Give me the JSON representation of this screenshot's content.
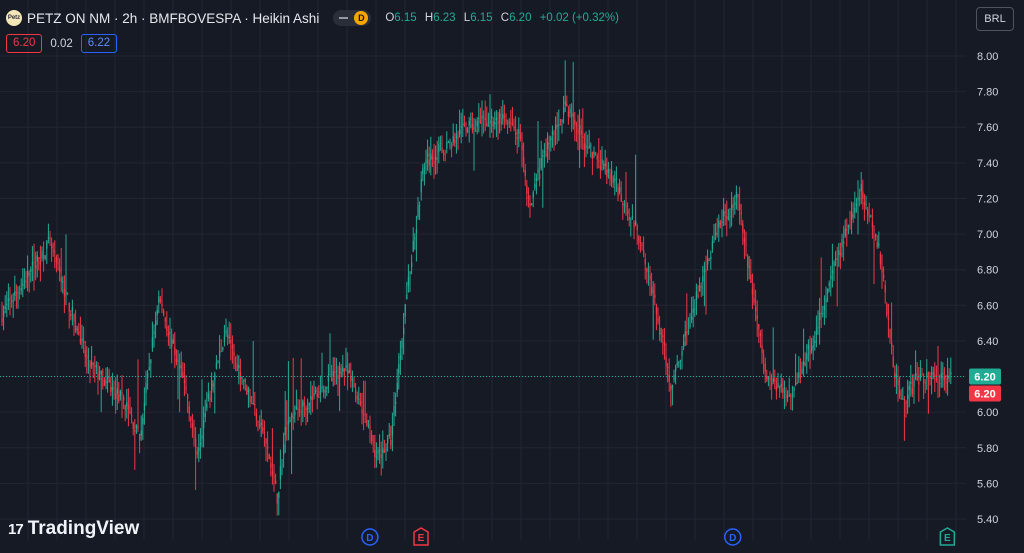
{
  "header": {
    "logo_text": "Petz",
    "title": "PETZ ON NM · 2h · BMFBOVESPA · Heikin Ashi",
    "badge": "D",
    "ohlc": [
      {
        "k": "O",
        "v": "6.15"
      },
      {
        "k": "H",
        "v": "6.23"
      },
      {
        "k": "L",
        "v": "6.15"
      },
      {
        "k": "C",
        "v": "6.20"
      }
    ],
    "change": "+0.02 (+0.32%)",
    "bid": "6.20",
    "spread": "0.02",
    "ask": "6.22",
    "currency": "BRL"
  },
  "brand": {
    "name": "TradingView"
  },
  "chart_data": {
    "type": "candlestick",
    "style": "Heikin Ashi",
    "colors": {
      "up": "#22ab94",
      "down": "#f23645",
      "grid": "#232632",
      "text": "#d1d4dc",
      "bg": "#161a25"
    },
    "yaxis": {
      "ticks": [
        "8.00",
        "7.80",
        "7.60",
        "7.40",
        "7.20",
        "7.00",
        "6.80",
        "6.60",
        "6.40",
        "6.20",
        "6.00",
        "5.80",
        "5.60",
        "5.40"
      ],
      "range": [
        5.36,
        8.15
      ]
    },
    "grid": true,
    "current_price": 6.2,
    "price_labels": [
      {
        "value": "6.20",
        "color": "#22ab94"
      },
      {
        "value": "6.20",
        "color": "#f23645"
      }
    ],
    "events": [
      {
        "label": "D",
        "color": "#2962ff",
        "at": 0.36
      },
      {
        "label": "E",
        "color": "#f23645",
        "at": 0.41
      },
      {
        "label": "D",
        "color": "#2962ff",
        "at": 0.715
      },
      {
        "label": "E",
        "color": "#22ab94",
        "at": 0.925
      }
    ],
    "path": [
      [
        0,
        6.55
      ],
      [
        0.05,
        6.95
      ],
      [
        0.09,
        6.28
      ],
      [
        0.13,
        6.05
      ],
      [
        0.145,
        5.85
      ],
      [
        0.165,
        6.65
      ],
      [
        0.195,
        6.1
      ],
      [
        0.205,
        5.78
      ],
      [
        0.235,
        6.45
      ],
      [
        0.275,
        5.9
      ],
      [
        0.29,
        5.52
      ],
      [
        0.3,
        5.95
      ],
      [
        0.33,
        6.1
      ],
      [
        0.36,
        6.25
      ],
      [
        0.375,
        6.1
      ],
      [
        0.395,
        5.75
      ],
      [
        0.41,
        5.85
      ],
      [
        0.425,
        6.6
      ],
      [
        0.445,
        7.4
      ],
      [
        0.47,
        7.5
      ],
      [
        0.49,
        7.6
      ],
      [
        0.525,
        7.65
      ],
      [
        0.545,
        7.55
      ],
      [
        0.555,
        7.15
      ],
      [
        0.575,
        7.5
      ],
      [
        0.595,
        7.72
      ],
      [
        0.615,
        7.5
      ],
      [
        0.645,
        7.3
      ],
      [
        0.675,
        6.95
      ],
      [
        0.69,
        6.55
      ],
      [
        0.705,
        6.15
      ],
      [
        0.73,
        6.6
      ],
      [
        0.755,
        7.05
      ],
      [
        0.775,
        7.2
      ],
      [
        0.795,
        6.55
      ],
      [
        0.805,
        6.2
      ],
      [
        0.83,
        6.1
      ],
      [
        0.855,
        6.4
      ],
      [
        0.885,
        6.95
      ],
      [
        0.905,
        7.25
      ],
      [
        0.925,
        6.9
      ],
      [
        0.94,
        6.25
      ],
      [
        0.95,
        6.05
      ],
      [
        0.965,
        6.2
      ]
    ]
  }
}
